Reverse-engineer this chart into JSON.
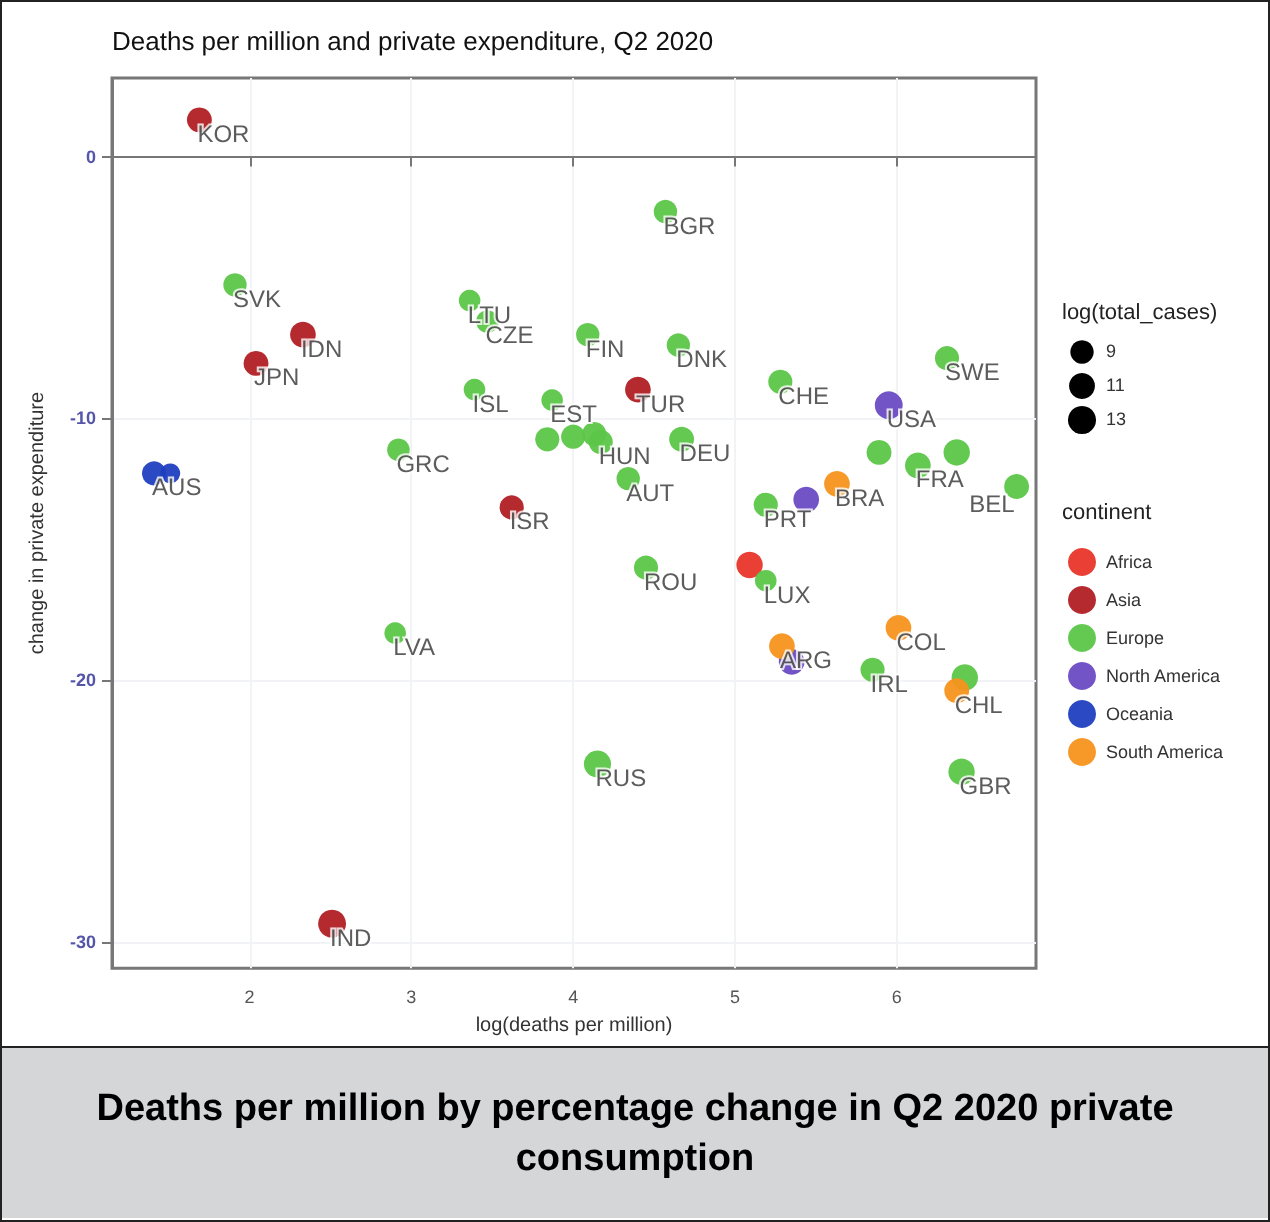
{
  "chart_data": {
    "type": "bubble",
    "title": "Deaths per million and private expenditure, Q2 2020",
    "xlabel": "log(deaths per million)",
    "ylabel": "change in private expenditure",
    "legend_title": [
      "log(total_cases)",
      "continent"
    ],
    "size_legend": [
      9,
      11,
      13
    ],
    "legend": "right",
    "grid": true,
    "marker": "circle",
    "xlim": [
      1.15,
      6.86
    ],
    "xticks": [
      2,
      3,
      4,
      5,
      6
    ],
    "ylim": [
      -31,
      3
    ],
    "yticks": [
      0,
      -10,
      -20,
      -30
    ],
    "series": [
      {
        "name": "Africa",
        "color": "#e8352a",
        "x": [
          5.09
        ],
        "values": [
          -15.6
        ],
        "sizes": [
          11.5
        ]
      },
      {
        "name": "Asia",
        "color": "#b01f24",
        "x": [
          1.69,
          2.33,
          2.04,
          3.62,
          4.4,
          2.51
        ],
        "values": [
          1.4,
          -6.8,
          -7.9,
          -13.4,
          -8.9,
          -29.3
        ],
        "sizes": [
          10.2,
          10.9,
          10.2,
          9.6,
          10.9,
          12.8
        ]
      },
      {
        "name": "Europe",
        "color": "#5cc648",
        "x": [
          4.57,
          1.91,
          3.36,
          3.47,
          4.09,
          3.39,
          3.87,
          2.92,
          3.84,
          4.0,
          4.13,
          4.17,
          4.65,
          5.28,
          4.67,
          4.34,
          6.31,
          5.89,
          6.13,
          6.37,
          6.74,
          5.19,
          4.45,
          5.19,
          5.85,
          6.42,
          6.4,
          4.15,
          2.9
        ],
        "values": [
          -2.1,
          -4.9,
          -5.5,
          -6.3,
          -6.8,
          -8.9,
          -9.3,
          -11.2,
          -10.8,
          -10.7,
          -10.6,
          -10.9,
          -7.2,
          -8.6,
          -10.8,
          -12.3,
          -7.7,
          -11.3,
          -11.8,
          -11.3,
          -12.6,
          -13.3,
          -15.7,
          -16.2,
          -19.6,
          -19.9,
          -23.5,
          -23.2,
          -18.2
        ],
        "sizes": [
          9,
          9,
          7.7,
          8.4,
          9,
          7.7,
          7.7,
          8.4,
          9.6,
          9.6,
          9.6,
          9.6,
          9,
          9.6,
          10.2,
          9,
          9.6,
          10.2,
          10.9,
          11.5,
          10.2,
          9.6,
          9.6,
          7.7,
          9.6,
          11.5,
          11.5,
          12.1,
          7.7
        ]
      },
      {
        "name": "North America",
        "color": "#6a4bc4",
        "x": [
          5.95,
          5.44,
          5.35
        ],
        "values": [
          -9.5,
          -13.1,
          -19.3
        ],
        "sizes": [
          12.8,
          10.9,
          10.9
        ]
      },
      {
        "name": "Oceania",
        "color": "#1f3fbf",
        "x": [
          1.41,
          1.51
        ],
        "values": [
          -12.1,
          -12.1
        ],
        "sizes": [
          9.6,
          6.5
        ]
      },
      {
        "name": "South America",
        "color": "#f7941d",
        "x": [
          5.63,
          6.01,
          5.29,
          6.37
        ],
        "values": [
          -12.5,
          -18.0,
          -18.7,
          -20.4
        ],
        "sizes": [
          10.9,
          10.9,
          10.9,
          10.2
        ]
      }
    ],
    "annotations": [
      {
        "text": "KOR",
        "x": 1.69,
        "y": 1.4
      },
      {
        "text": "BGR",
        "x": 4.57,
        "y": -2.1
      },
      {
        "text": "SVK",
        "x": 1.91,
        "y": -4.9
      },
      {
        "text": "IDN",
        "x": 2.33,
        "y": -6.8
      },
      {
        "text": "JPN",
        "x": 2.04,
        "y": -7.9
      },
      {
        "text": "LTU",
        "x": 3.36,
        "y": -5.5
      },
      {
        "text": "CZE",
        "x": 3.47,
        "y": -6.3
      },
      {
        "text": "FIN",
        "x": 4.09,
        "y": -6.8
      },
      {
        "text": "DNK",
        "x": 4.65,
        "y": -7.2
      },
      {
        "text": "SWE",
        "x": 6.31,
        "y": -7.7
      },
      {
        "text": "ISL",
        "x": 3.39,
        "y": -8.9
      },
      {
        "text": "EST",
        "x": 3.87,
        "y": -9.3
      },
      {
        "text": "TUR",
        "x": 4.4,
        "y": -8.9
      },
      {
        "text": "CHE",
        "x": 5.28,
        "y": -8.6
      },
      {
        "text": "USA",
        "x": 5.95,
        "y": -9.5
      },
      {
        "text": "AUS",
        "x": 1.41,
        "y": -12.1
      },
      {
        "text": "GRC",
        "x": 2.92,
        "y": -11.2
      },
      {
        "text": "HUN",
        "x": 4.17,
        "y": -10.9
      },
      {
        "text": "DEU",
        "x": 4.67,
        "y": -10.8
      },
      {
        "text": "AUT",
        "x": 4.34,
        "y": -12.3
      },
      {
        "text": "FRA",
        "x": 6.13,
        "y": -11.8
      },
      {
        "text": "BEL",
        "x": 6.74,
        "y": -12.6
      },
      {
        "text": "BRA",
        "x": 5.63,
        "y": -12.5
      },
      {
        "text": "PRT",
        "x": 5.19,
        "y": -13.3
      },
      {
        "text": "ISR",
        "x": 3.62,
        "y": -13.4
      },
      {
        "text": "ROU",
        "x": 4.45,
        "y": -15.7
      },
      {
        "text": "LUX",
        "x": 5.19,
        "y": -16.2
      },
      {
        "text": "COL",
        "x": 6.01,
        "y": -18.0
      },
      {
        "text": "ARG",
        "x": 5.29,
        "y": -18.7
      },
      {
        "text": "IRL",
        "x": 5.85,
        "y": -19.6
      },
      {
        "text": "CHL",
        "x": 6.37,
        "y": -20.4
      },
      {
        "text": "LVA",
        "x": 2.9,
        "y": -18.2
      },
      {
        "text": "RUS",
        "x": 4.15,
        "y": -23.2
      },
      {
        "text": "GBR",
        "x": 6.4,
        "y": -23.5
      },
      {
        "text": "IND",
        "x": 2.51,
        "y": -29.3
      },
      "Deaths per million by percentage change in Q2 2020 private consumption"
    ]
  }
}
